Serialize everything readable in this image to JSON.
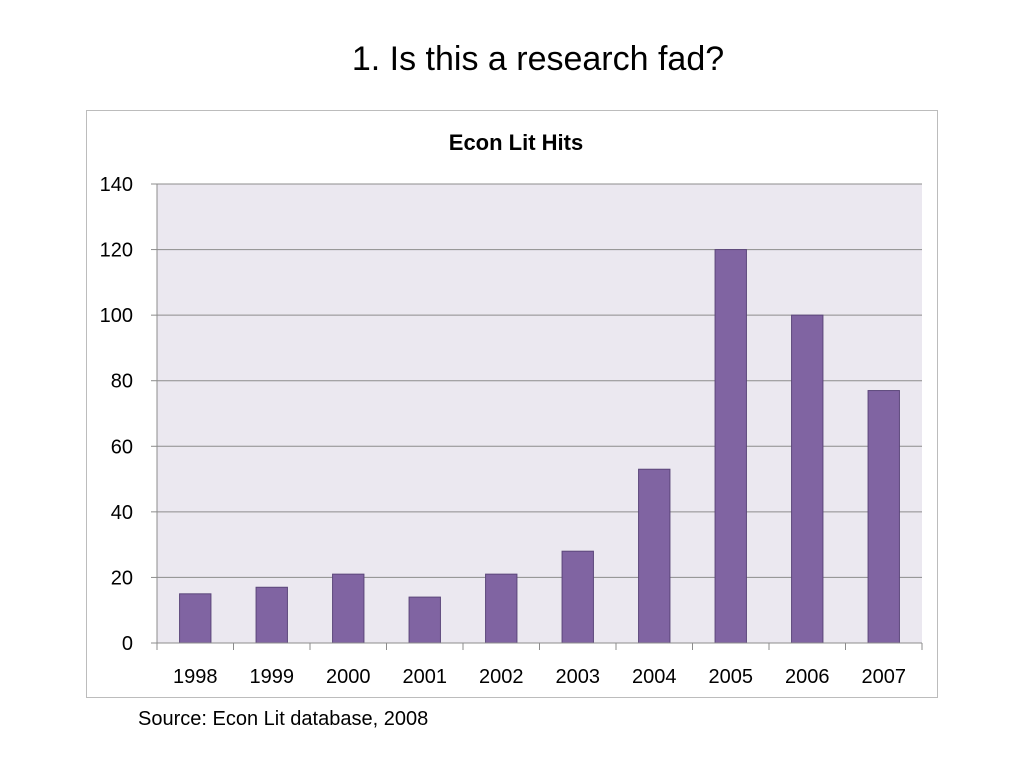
{
  "slide": {
    "title": "1.  Is this a research fad?",
    "source": "Source:  Econ Lit database, 2008"
  },
  "chart_data": {
    "type": "bar",
    "title": "Econ Lit Hits",
    "xlabel": "",
    "ylabel": "",
    "categories": [
      "1998",
      "1999",
      "2000",
      "2001",
      "2002",
      "2003",
      "2004",
      "2005",
      "2006",
      "2007"
    ],
    "values": [
      15,
      17,
      21,
      14,
      21,
      28,
      53,
      120,
      100,
      77
    ],
    "ylim": [
      0,
      140
    ],
    "yticks": [
      0,
      20,
      40,
      60,
      80,
      100,
      120,
      140
    ],
    "grid": true,
    "legend": false,
    "colors": {
      "bar": "#8064a2",
      "bar_edge": "#5b467a",
      "plot_bg": "#ebe8f0",
      "gridline": "#8c8c8c"
    }
  }
}
